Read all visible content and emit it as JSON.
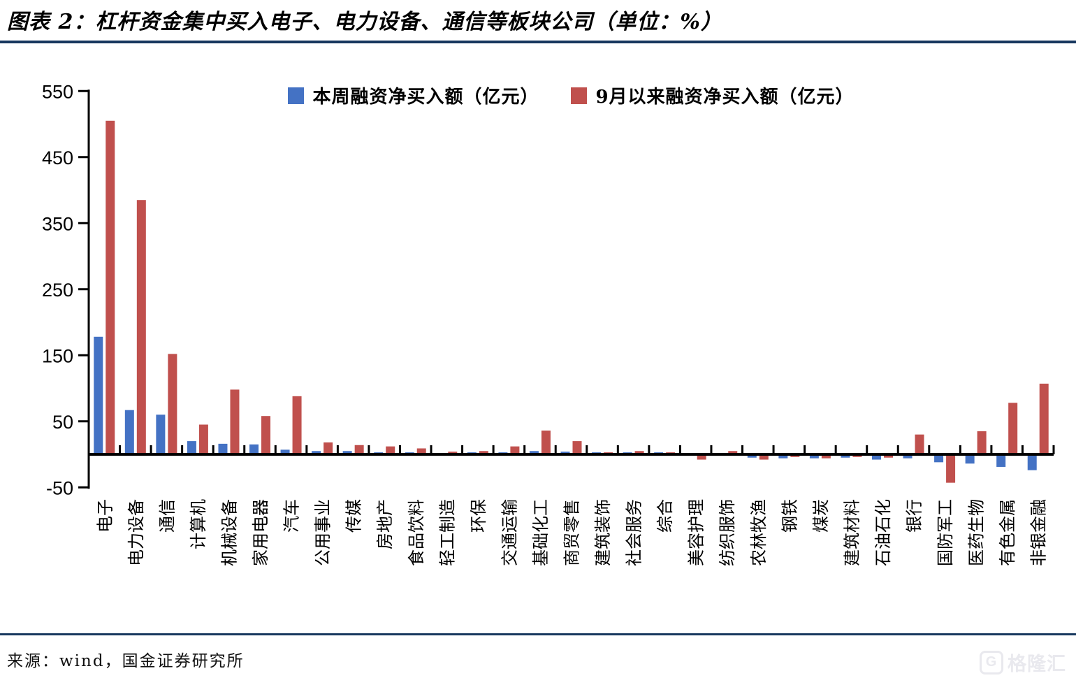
{
  "title": "图表 2：杠杆资金集中买入电子、电力设备、通信等板块公司（单位：%）",
  "source": "来源：wind，国金证券研究所",
  "watermark": "格隆汇",
  "watermark_icon": "G",
  "colors": {
    "series_week": "#4472C4",
    "series_sept": "#C0504D",
    "rule": "#17375E",
    "axis": "#000000",
    "watermark": "#e9e9ee"
  },
  "chart_data": {
    "type": "bar",
    "title": "",
    "xlabel": "",
    "ylabel": "",
    "ylim": [
      -50,
      550
    ],
    "yticks": [
      550,
      450,
      350,
      250,
      150,
      50,
      -50
    ],
    "grid": false,
    "legend_position": "top-center",
    "categories": [
      "电子",
      "电力设备",
      "通信",
      "计算机",
      "机械设备",
      "家用电器",
      "汽车",
      "公用事业",
      "传媒",
      "房地产",
      "食品饮料",
      "轻工制造",
      "环保",
      "交通运输",
      "基础化工",
      "商贸零售",
      "建筑装饰",
      "社会服务",
      "综合",
      "美容护理",
      "纺织服饰",
      "农林牧渔",
      "钢铁",
      "煤炭",
      "建筑材料",
      "石油石化",
      "银行",
      "国防军工",
      "医药生物",
      "有色金属",
      "非银金融"
    ],
    "series": [
      {
        "name": "本周融资净买入额（亿元）",
        "color_key": "series_week",
        "values": [
          178,
          67,
          60,
          20,
          16,
          15,
          7,
          5,
          5,
          3,
          3,
          2,
          3,
          3,
          5,
          4,
          3,
          3,
          3,
          2,
          2,
          -5,
          -6,
          -6,
          -5,
          -8,
          -6,
          -12,
          -14,
          -19,
          -24
        ]
      },
      {
        "name": "9月以来融资净买入额（亿元）",
        "color_key": "series_sept",
        "values": [
          505,
          385,
          152,
          45,
          98,
          58,
          88,
          18,
          14,
          12,
          9,
          4,
          5,
          12,
          36,
          20,
          3,
          5,
          3,
          -8,
          5,
          -8,
          -4,
          -6,
          -4,
          -5,
          30,
          -43,
          35,
          78,
          107
        ]
      }
    ]
  }
}
